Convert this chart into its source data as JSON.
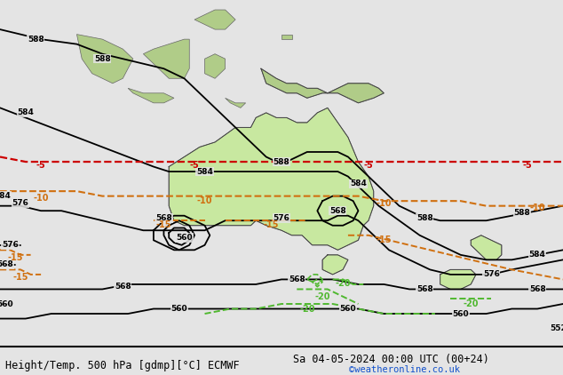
{
  "title_left": "Height/Temp. 500 hPa [gdmp][°C] ECMWF",
  "title_right": "Sa 04-05-2024 00:00 UTC (00+24)",
  "credit": "©weatheronline.co.uk",
  "background_land": "#c8e8a0",
  "background_sea": "#e4e4e4",
  "contour_color": "#000000",
  "temp_red_color": "#cc0000",
  "temp_orange_color": "#d07010",
  "temp_green_color": "#50b830",
  "footer_fontsize": 8.5,
  "credit_color": "#1050cc",
  "xmin": 80,
  "xmax": 190,
  "ymin": -58,
  "ymax": 12
}
